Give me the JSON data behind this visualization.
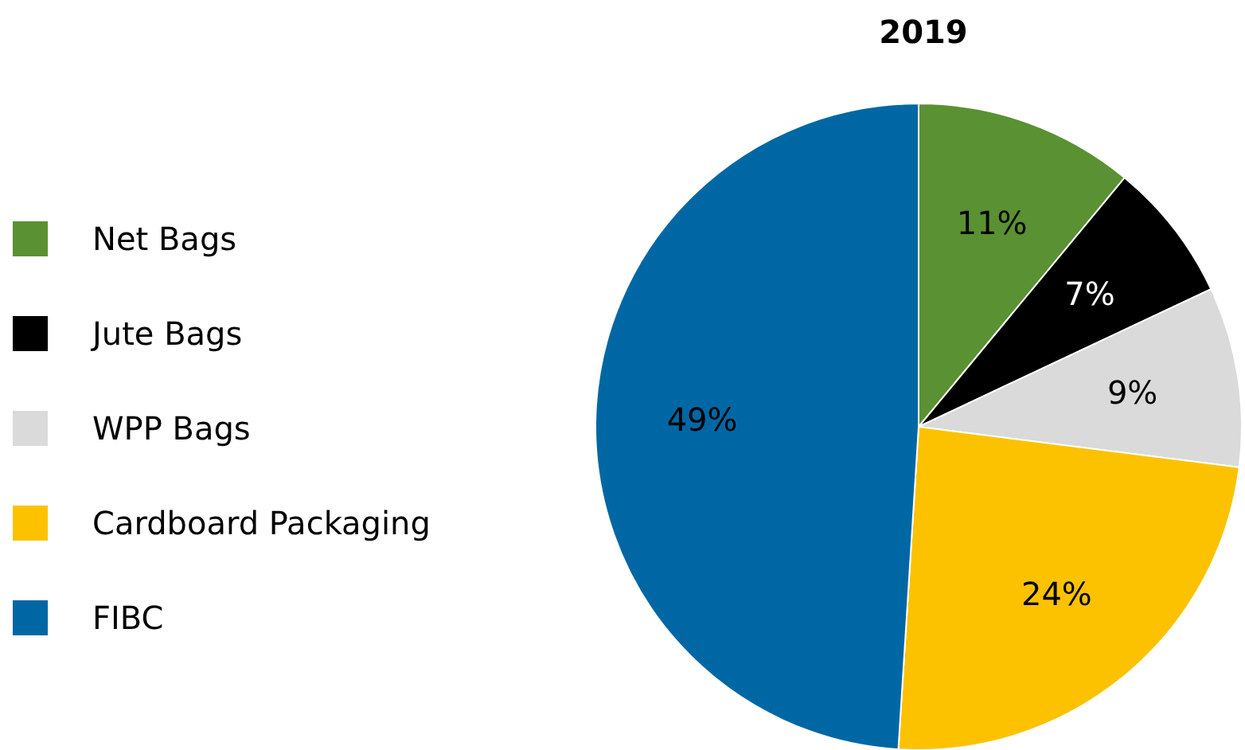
{
  "chart_data": {
    "type": "pie",
    "title": "2019",
    "categories": [
      "Net Bags",
      "Jute Bags",
      "WPP Bags",
      "Cardboard Packaging",
      "FIBC"
    ],
    "values": [
      11,
      7,
      9,
      24,
      49
    ],
    "colors": [
      "#5a9132",
      "#000000",
      "#d9dad9",
      "#fcc200",
      "#0067a5"
    ],
    "value_labels": [
      "11%",
      "7%",
      "9%",
      "24%",
      "49%"
    ],
    "legend": "left"
  }
}
